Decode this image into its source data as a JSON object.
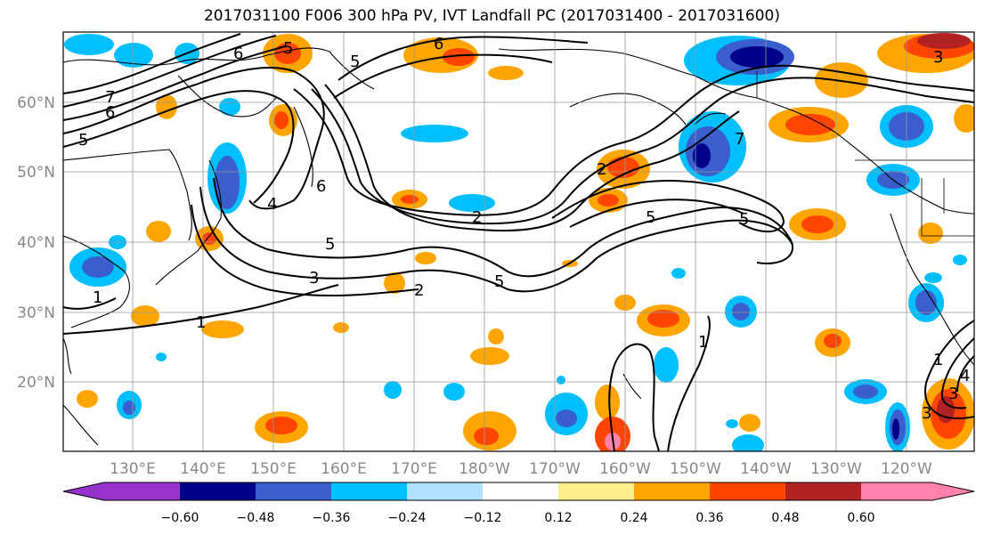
{
  "title": "2017031100 F006 300 hPa PV, IVT Landfall PC (2017031400 - 2017031600)",
  "map": {
    "lon_labels": [
      "130°E",
      "140°E",
      "150°E",
      "160°E",
      "170°E",
      "180°W",
      "170°W",
      "160°W",
      "150°W",
      "140°W",
      "130°W",
      "120°W"
    ],
    "lat_labels": [
      "60°N",
      "50°N",
      "40°N",
      "30°N",
      "20°N"
    ],
    "contour_labels": [
      "6",
      "5",
      "7",
      "6",
      "5",
      "6",
      "5",
      "3",
      "6",
      "4",
      "5",
      "3",
      "2",
      "2",
      "5",
      "5",
      "5",
      "2",
      "7",
      "1",
      "1",
      "1",
      "1",
      "3",
      "4",
      "3"
    ]
  },
  "colorbar": {
    "tick_labels": [
      "−0.60",
      "−0.48",
      "−0.36",
      "−0.24",
      "−0.12",
      "0.12",
      "0.24",
      "0.36",
      "0.48",
      "0.60"
    ],
    "colors": [
      "#9932cc",
      "#00008b",
      "#3a5fcd",
      "#00bfff",
      "#b0e2ff",
      "#ffffff",
      "#ffec8b",
      "#ffa500",
      "#ff4500",
      "#b22222",
      "#ff82ab"
    ]
  }
}
